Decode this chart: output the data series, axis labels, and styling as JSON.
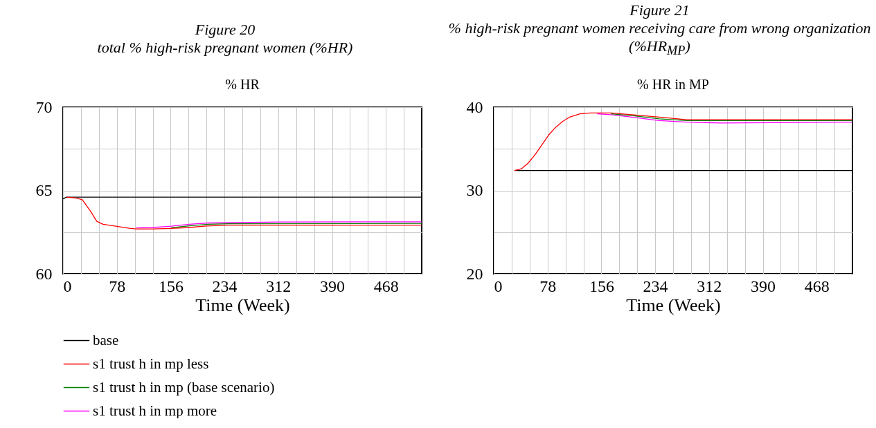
{
  "chart_data": [
    {
      "type": "line",
      "title": "% HR",
      "annotations": [
        "Figure 20",
        "total % high-risk pregnant women (%HR)"
      ],
      "xlabel": "Time (Week)",
      "xlim": [
        0,
        520
      ],
      "ylim": [
        60,
        70
      ],
      "xticks": [
        0,
        {
          "value": 26,
          "label": null
        },
        {
          "value": 52,
          "label": null
        },
        78,
        {
          "value": 104,
          "label": null
        },
        {
          "value": 130,
          "label": null
        },
        156,
        {
          "value": 182,
          "label": null
        },
        {
          "value": 208,
          "label": null
        },
        234,
        {
          "value": 260,
          "label": null
        },
        {
          "value": 286,
          "label": null
        },
        312,
        {
          "value": 338,
          "label": null
        },
        {
          "value": 364,
          "label": null
        },
        390,
        {
          "value": 416,
          "label": null
        },
        {
          "value": 442,
          "label": null
        },
        468,
        {
          "value": 494,
          "label": null
        }
      ],
      "yticks": [
        60,
        {
          "value": 62.5,
          "label": null
        },
        65,
        {
          "value": 67.5,
          "label": null
        },
        70
      ],
      "grid": true,
      "legend": "bottom",
      "series": [
        {
          "name": "base",
          "color": "#000000",
          "x": [
            0,
            5,
            520
          ],
          "values": [
            64.5,
            64.6,
            64.6
          ]
        },
        {
          "name": "s1 trust h in mp less",
          "color": "#ff0000",
          "x": [
            5,
            19,
            28,
            40,
            49,
            58,
            78,
            96,
            106,
            130,
            157,
            183,
            208,
            240,
            520
          ],
          "values": [
            64.6,
            64.55,
            64.45,
            63.75,
            63.15,
            62.97,
            62.85,
            62.73,
            62.69,
            62.69,
            62.72,
            62.78,
            62.87,
            62.92,
            62.92
          ]
        },
        {
          "name": "s1 trust h in mp (base scenario)",
          "color": "#008000",
          "x": [
            157,
            183,
            210,
            240,
            520
          ],
          "values": [
            62.77,
            62.88,
            62.97,
            63.0,
            63.02
          ]
        },
        {
          "name": "s1 trust h in mp more",
          "color": "#ff00ff",
          "x": [
            106,
            130,
            157,
            183,
            210,
            311,
            520
          ],
          "values": [
            62.75,
            62.78,
            62.86,
            62.97,
            63.05,
            63.11,
            63.12
          ]
        }
      ]
    },
    {
      "type": "line",
      "title": "% HR in MP",
      "annotations": [
        "Figure 21",
        "% high-risk pregnant women receiving care from wrong organization (%HR$_{MP}$)"
      ],
      "xlabel": "Time (Week)",
      "xlim": [
        0,
        520
      ],
      "ylim": [
        20,
        40
      ],
      "xticks": [
        0,
        {
          "value": 26,
          "label": null
        },
        {
          "value": 52,
          "label": null
        },
        78,
        {
          "value": 104,
          "label": null
        },
        {
          "value": 130,
          "label": null
        },
        156,
        {
          "value": 182,
          "label": null
        },
        {
          "value": 208,
          "label": null
        },
        234,
        {
          "value": 260,
          "label": null
        },
        {
          "value": 286,
          "label": null
        },
        312,
        {
          "value": 338,
          "label": null
        },
        {
          "value": 364,
          "label": null
        },
        390,
        {
          "value": 416,
          "label": null
        },
        {
          "value": 442,
          "label": null
        },
        468,
        {
          "value": 494,
          "label": null
        }
      ],
      "yticks": [
        20,
        {
          "value": 25,
          "label": null
        },
        30,
        {
          "value": 35,
          "label": null
        },
        40
      ],
      "grid": true,
      "legend": "bottom",
      "series": [
        {
          "name": "base",
          "color": "#000000",
          "x": [
            30,
            520
          ],
          "values": [
            32.4,
            32.4
          ]
        },
        {
          "name": "s1 trust h in mp less",
          "color": "#ff0000",
          "x": [
            30,
            40,
            50,
            60,
            70,
            80,
            90,
            100,
            110,
            125,
            140,
            170,
            200,
            240,
            280,
            520
          ],
          "values": [
            32.4,
            32.6,
            33.3,
            34.3,
            35.5,
            36.7,
            37.6,
            38.3,
            38.8,
            39.2,
            39.3,
            39.3,
            39.1,
            38.8,
            38.5,
            38.5
          ]
        },
        {
          "name": "s1 trust h in mp (base scenario)",
          "color": "#008000",
          "x": [
            170,
            200,
            240,
            280,
            520
          ],
          "values": [
            39.2,
            39.0,
            38.6,
            38.4,
            38.4
          ]
        },
        {
          "name": "s1 trust h in mp more",
          "color": "#ff00ff",
          "x": [
            150,
            170,
            200,
            240,
            280,
            330,
            520
          ],
          "values": [
            39.2,
            39.1,
            38.8,
            38.4,
            38.2,
            38.1,
            38.2
          ]
        }
      ]
    }
  ]
}
